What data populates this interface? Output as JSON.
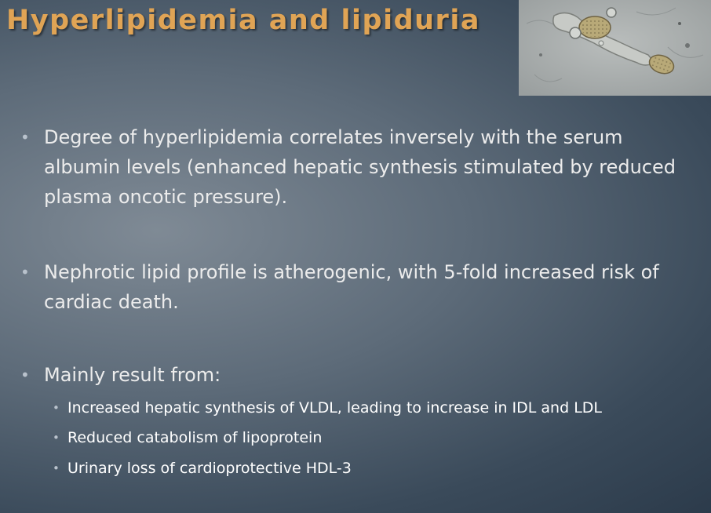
{
  "slide": {
    "title": "Hyperlipidemia and lipiduria",
    "image_icon": "urinary-cast-micrograph",
    "bullets": [
      "Degree of hyperlipidemia correlates inversely with the serum albumin levels (enhanced hepatic synthesis stimulated by reduced plasma oncotic pressure).",
      "Nephrotic lipid profile is atherogenic, with 5-fold increased risk of cardiac death.",
      "Mainly result from:"
    ],
    "sub_bullets": [
      "Increased hepatic synthesis of VLDL, leading to increase in IDL and LDL",
      "Reduced catabolism of lipoprotein",
      "Urinary loss of cardioprotective HDL-3"
    ],
    "bullet_glyph": "•"
  },
  "colors": {
    "title": "#e0a455",
    "body_text": "#ececec",
    "background_center": "#7f8a95",
    "background_edge": "#2c3b4b"
  }
}
